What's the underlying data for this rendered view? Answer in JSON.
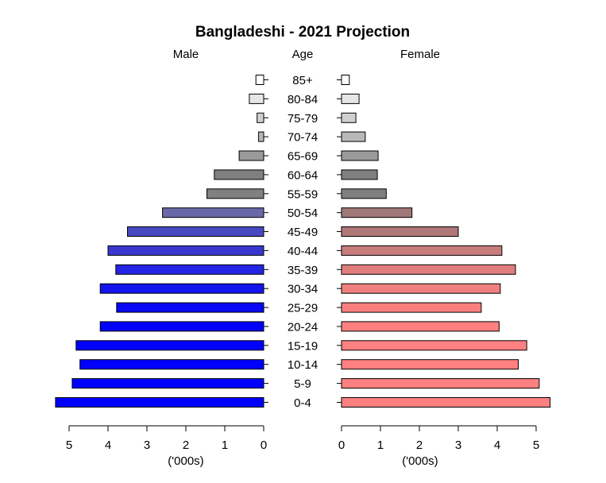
{
  "chart_data": {
    "type": "bar",
    "title": "Bangladeshi - 2021 Projection",
    "left_header": "Male",
    "center_header": "Age",
    "right_header": "Female",
    "xlabel_left": "('000s)",
    "xlabel_right": "('000s)",
    "categories": [
      "85+",
      "80-84",
      "75-79",
      "70-74",
      "65-69",
      "60-64",
      "55-59",
      "50-54",
      "45-49",
      "40-44",
      "35-39",
      "30-34",
      "25-29",
      "20-24",
      "15-19",
      "10-14",
      "5-9",
      "0-4"
    ],
    "series": [
      {
        "name": "Male",
        "values": [
          0.2,
          0.37,
          0.17,
          0.13,
          0.63,
          1.27,
          1.46,
          2.6,
          3.5,
          4.0,
          3.8,
          4.2,
          3.78,
          4.2,
          4.82,
          4.72,
          4.92,
          5.35
        ],
        "colors": [
          "#ffffff",
          "#e6e6e6",
          "#d0d0d0",
          "#b8b8b8",
          "#9a9a9a",
          "#808080",
          "#808080",
          "#6868a8",
          "#4848c0",
          "#3838d0",
          "#2424e4",
          "#1414ec",
          "#0808f4",
          "#0000fa",
          "#0000ff",
          "#0000ff",
          "#0000ff",
          "#0000ff"
        ]
      },
      {
        "name": "Female",
        "values": [
          0.2,
          0.45,
          0.37,
          0.61,
          0.94,
          0.92,
          1.15,
          1.81,
          3.0,
          4.12,
          4.47,
          4.08,
          3.59,
          4.05,
          4.76,
          4.54,
          5.08,
          5.36
        ],
        "colors": [
          "#ffffff",
          "#e6e6e6",
          "#d0d0d0",
          "#b8b8b8",
          "#9a9a9a",
          "#808080",
          "#808080",
          "#a07878",
          "#b07878",
          "#c87c7c",
          "#e07e7e",
          "#f08080",
          "#fa8080",
          "#ff8080",
          "#ff8080",
          "#ff8080",
          "#ff8080",
          "#ff8080"
        ]
      }
    ],
    "xlim": [
      0,
      5.5
    ],
    "male_ticks": [
      5,
      4,
      3,
      2,
      1,
      0
    ],
    "female_ticks": [
      0,
      1,
      2,
      3,
      4,
      5
    ],
    "grid": false
  }
}
